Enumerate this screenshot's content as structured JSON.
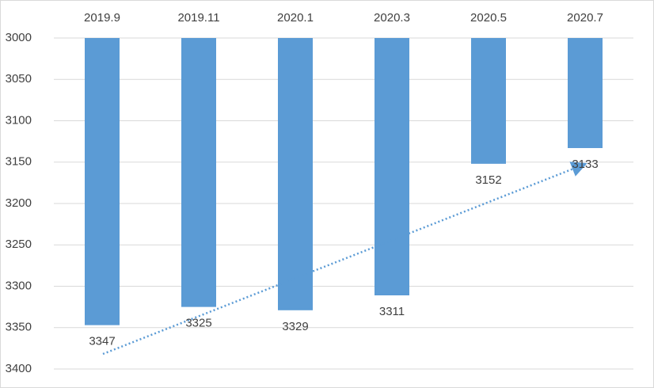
{
  "chart_data": {
    "type": "bar",
    "categories": [
      "2019.9",
      "2019.11",
      "2020.1",
      "2020.3",
      "2020.5",
      "2020.7"
    ],
    "values": [
      3347,
      3325,
      3329,
      3311,
      3152,
      3133
    ],
    "color": "#5b9bd5",
    "ylim": [
      3000,
      3400
    ],
    "yticks": [
      3000,
      3050,
      3100,
      3150,
      3200,
      3250,
      3300,
      3350,
      3400
    ],
    "y_reversed": true,
    "grid": true
  }
}
